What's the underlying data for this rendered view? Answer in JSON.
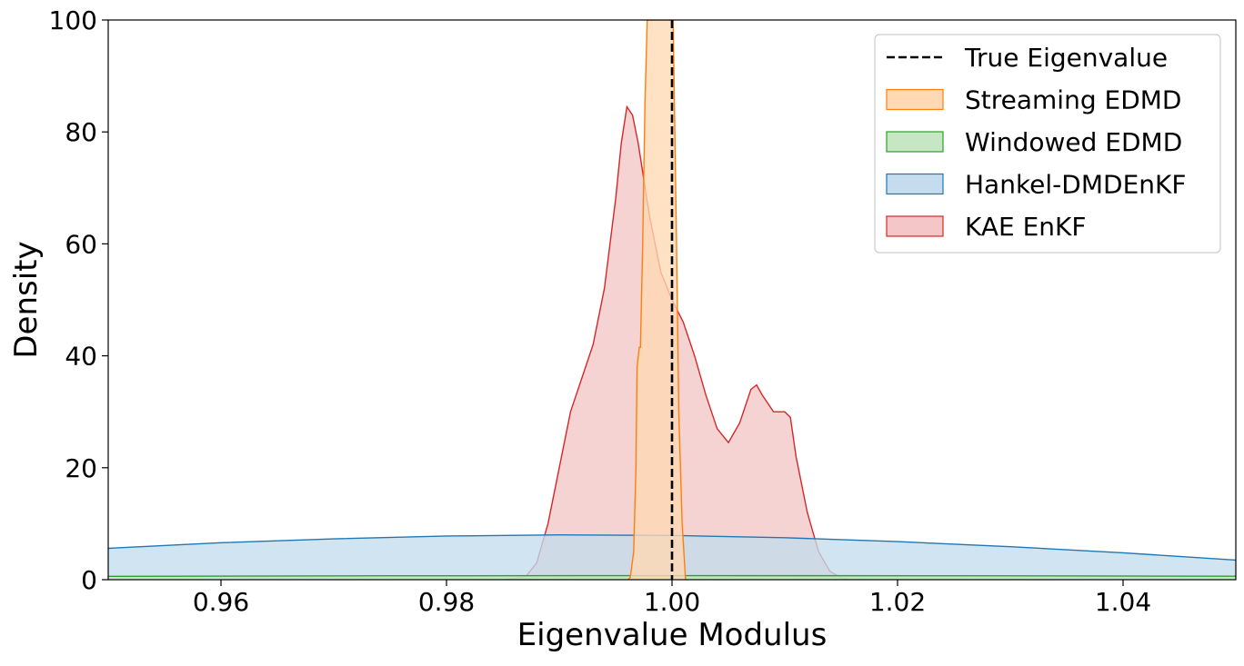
{
  "chart_data": {
    "type": "area",
    "title": "",
    "xlabel": "Eigenvalue Modulus",
    "ylabel": "Density",
    "xlim": [
      0.95,
      1.05
    ],
    "ylim": [
      0,
      100
    ],
    "grid": false,
    "legend_position": "top-right",
    "x_ticks": [
      0.96,
      0.98,
      1.0,
      1.02,
      1.04
    ],
    "x_tick_labels": [
      "0.96",
      "0.98",
      "1.00",
      "1.02",
      "1.04"
    ],
    "y_ticks": [
      0,
      20,
      40,
      60,
      80,
      100
    ],
    "y_tick_labels": [
      "0",
      "20",
      "40",
      "60",
      "80",
      "100"
    ],
    "reference_line": {
      "name": "True Eigenvalue",
      "x": 1.0,
      "color": "#000000",
      "style": "dashed"
    },
    "series": [
      {
        "name": "Streaming EDMD",
        "color": "#ff7f0e",
        "fill": "#ffd9b3",
        "points": [
          [
            0.9961,
            0
          ],
          [
            0.9963,
            0.4
          ],
          [
            0.9966,
            5
          ],
          [
            0.9968,
            20
          ],
          [
            0.9969,
            38
          ],
          [
            0.9971,
            41.5
          ],
          [
            0.9972,
            41.5
          ],
          [
            0.9974,
            60
          ],
          [
            0.9976,
            85
          ],
          [
            0.9978,
            100
          ],
          [
            0.9998,
            100
          ],
          [
            1.0001,
            100
          ],
          [
            1.0004,
            60
          ],
          [
            1.0006,
            30
          ],
          [
            1.0009,
            10
          ],
          [
            1.0012,
            0
          ]
        ]
      },
      {
        "name": "Windowed EDMD",
        "color": "#2ca02c",
        "fill": "#c7e6c3",
        "points": [
          [
            0.95,
            0.6
          ],
          [
            0.975,
            0.7
          ],
          [
            1.0,
            0.72
          ],
          [
            1.025,
            0.7
          ],
          [
            1.05,
            0.62
          ]
        ]
      },
      {
        "name": "Hankel-DMDEnKF",
        "color": "#1f77b4",
        "fill": "#c4dced",
        "points": [
          [
            0.95,
            5.6
          ],
          [
            0.96,
            6.6
          ],
          [
            0.97,
            7.3
          ],
          [
            0.98,
            7.8
          ],
          [
            0.99,
            8.0
          ],
          [
            1.0,
            7.9
          ],
          [
            1.01,
            7.5
          ],
          [
            1.02,
            6.8
          ],
          [
            1.03,
            5.9
          ],
          [
            1.04,
            4.8
          ],
          [
            1.05,
            3.5
          ]
        ]
      },
      {
        "name": "KAE EnKF",
        "color": "#d62728",
        "fill": "#f4c6c7",
        "points": [
          [
            0.985,
            0
          ],
          [
            0.987,
            0.5
          ],
          [
            0.988,
            3
          ],
          [
            0.989,
            10
          ],
          [
            0.99,
            20
          ],
          [
            0.991,
            30
          ],
          [
            0.992,
            36
          ],
          [
            0.993,
            42
          ],
          [
            0.994,
            52
          ],
          [
            0.995,
            68
          ],
          [
            0.9955,
            78
          ],
          [
            0.996,
            84.5
          ],
          [
            0.9965,
            83
          ],
          [
            0.997,
            78
          ],
          [
            0.998,
            65
          ],
          [
            0.999,
            55
          ],
          [
            1.0,
            50
          ],
          [
            1.001,
            46
          ],
          [
            1.002,
            40
          ],
          [
            1.003,
            33
          ],
          [
            1.004,
            27
          ],
          [
            1.005,
            24.5
          ],
          [
            1.006,
            28
          ],
          [
            1.007,
            34
          ],
          [
            1.0075,
            34.8
          ],
          [
            1.008,
            33
          ],
          [
            1.009,
            30
          ],
          [
            1.01,
            30
          ],
          [
            1.0105,
            29
          ],
          [
            1.011,
            22
          ],
          [
            1.012,
            12
          ],
          [
            1.013,
            5
          ],
          [
            1.014,
            1.5
          ],
          [
            1.015,
            0.3
          ],
          [
            1.0158,
            0
          ]
        ]
      }
    ]
  }
}
